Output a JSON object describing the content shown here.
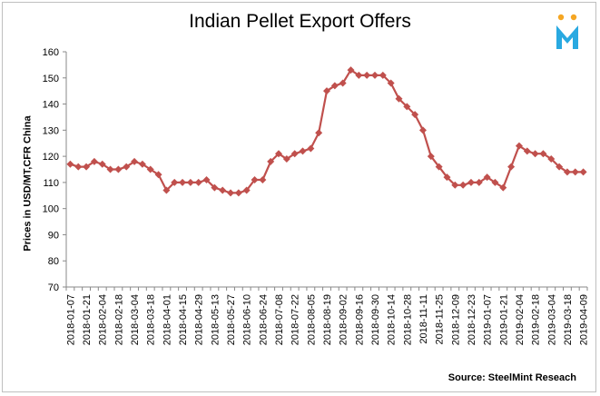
{
  "chart_data": {
    "type": "line",
    "title": "Indian Pellet Export Offers",
    "ylabel": "Prices in USD/MT,CFR  China",
    "xlabel": "",
    "source": "Source: SteelMint  Reseach",
    "ylim": [
      70,
      160
    ],
    "yticks": [
      70,
      80,
      90,
      100,
      110,
      120,
      130,
      140,
      150,
      160
    ],
    "xtick_labels": [
      "2018-01-07",
      "2018-01-21",
      "2018-02-04",
      "2018-02-18",
      "2018-03-04",
      "2018-03-18",
      "2018-04-01",
      "2018-04-15",
      "2018-04-29",
      "2018-05-13",
      "2018-05-27",
      "2018-06-10",
      "2018-06-24",
      "2018-07-08",
      "2018-07-22",
      "2018-08-05",
      "2018-08-19",
      "2018-09-02",
      "2018-09-16",
      "2018-09-30",
      "2018-10-14",
      "2018-10-28",
      "2018-11-11",
      "2018-11-25",
      "2018-12-09",
      "2018-12-23",
      "2019-01-07",
      "2019-01-21",
      "2019-02-04",
      "2019-02-18",
      "2019-03-04",
      "2019-03-18",
      "2019-04-09"
    ],
    "grid": false,
    "color": "#c0504d",
    "series": [
      {
        "values": [
          117,
          116,
          116,
          118,
          117,
          115,
          115,
          116,
          118,
          117,
          115,
          113,
          107,
          110,
          110,
          110,
          110,
          111,
          108,
          107,
          106,
          106,
          107,
          111,
          111,
          118,
          121,
          119,
          121,
          122,
          123,
          129,
          145,
          147,
          148,
          153,
          151,
          151,
          151,
          151,
          148,
          142,
          139,
          136,
          130,
          120,
          116,
          112,
          109,
          109,
          110,
          110,
          112,
          110,
          108,
          116,
          124,
          122,
          121,
          121,
          119,
          116,
          114,
          114,
          114
        ]
      }
    ]
  },
  "logo": {
    "icon": "steelmint-logo-icon",
    "dot_color": "#f5a623",
    "letter_color": "#29a9e1"
  }
}
